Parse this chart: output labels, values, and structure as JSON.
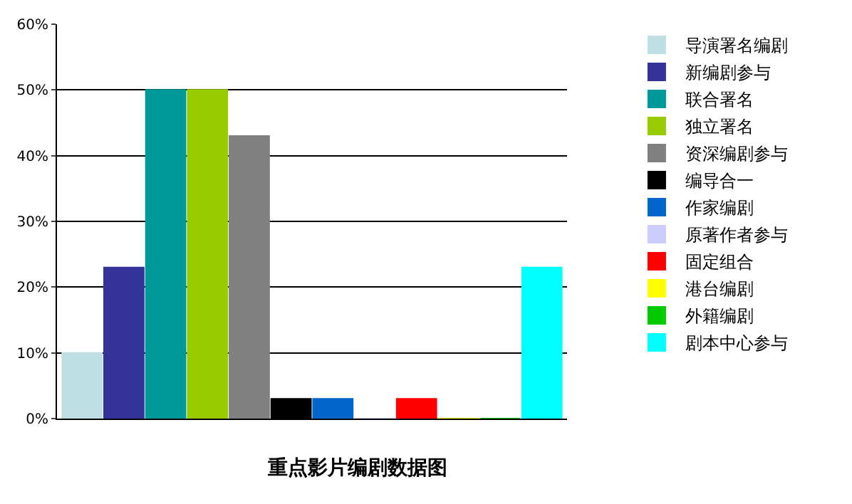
{
  "chart_data": {
    "type": "bar",
    "title": "重点影片编剧数据图",
    "categories": [
      null,
      null,
      null,
      null,
      null,
      null,
      null,
      null,
      null,
      null,
      null,
      null
    ],
    "series": [
      {
        "name": "导演署名编剧",
        "color": "#c0dfe3",
        "values": [
          10,
          null,
          null,
          null,
          null,
          null,
          null,
          null,
          null,
          null,
          null,
          null
        ]
      },
      {
        "name": "新编剧参与",
        "color": "#333399",
        "values": [
          null,
          23,
          null,
          null,
          null,
          null,
          null,
          null,
          null,
          null,
          null,
          null
        ]
      },
      {
        "name": "联合署名",
        "color": "#009999",
        "values": [
          null,
          null,
          50,
          null,
          null,
          null,
          null,
          null,
          null,
          null,
          null,
          null
        ]
      },
      {
        "name": "独立署名",
        "color": "#99cc00",
        "values": [
          null,
          null,
          null,
          50,
          null,
          null,
          null,
          null,
          null,
          null,
          null,
          null
        ]
      },
      {
        "name": "资深编剧参与",
        "color": "#808080",
        "values": [
          null,
          null,
          null,
          null,
          43,
          null,
          null,
          null,
          null,
          null,
          null,
          null
        ]
      },
      {
        "name": "编导合一",
        "color": "#000000",
        "values": [
          null,
          null,
          null,
          null,
          null,
          3,
          null,
          null,
          null,
          null,
          null,
          null
        ]
      },
      {
        "name": "作家编剧",
        "color": "#0066cc",
        "values": [
          null,
          null,
          null,
          null,
          null,
          null,
          3,
          null,
          null,
          null,
          null,
          null
        ]
      },
      {
        "name": "原著作者参与",
        "color": "#ccccff",
        "values": [
          null,
          null,
          null,
          null,
          null,
          null,
          null,
          0,
          null,
          null,
          null,
          null
        ]
      },
      {
        "name": "固定组合",
        "color": "#ff0000",
        "values": [
          null,
          null,
          null,
          null,
          null,
          null,
          null,
          null,
          3,
          null,
          null,
          null
        ]
      },
      {
        "name": "港台编剧",
        "color": "#ffff00",
        "values": [
          null,
          null,
          null,
          null,
          null,
          null,
          null,
          null,
          null,
          0,
          null,
          null
        ]
      },
      {
        "name": "外籍编剧",
        "color": "#00cc00",
        "values": [
          null,
          null,
          null,
          null,
          null,
          null,
          null,
          null,
          null,
          null,
          0,
          null
        ]
      },
      {
        "name": "剧本中心参与",
        "color": "#00ffff",
        "values": [
          null,
          null,
          null,
          null,
          null,
          null,
          null,
          null,
          null,
          null,
          null,
          23
        ]
      }
    ],
    "ylim": [
      0,
      60
    ],
    "yticks": [
      {
        "value": 0,
        "label": "0%"
      },
      {
        "value": 10,
        "label": "10%"
      },
      {
        "value": 20,
        "label": "20%"
      },
      {
        "value": 30,
        "label": "30%"
      },
      {
        "value": 40,
        "label": "40%"
      },
      {
        "value": 50,
        "label": "50%"
      },
      {
        "value": 60,
        "label": "60%"
      }
    ],
    "grid": "y",
    "legend": "right"
  }
}
